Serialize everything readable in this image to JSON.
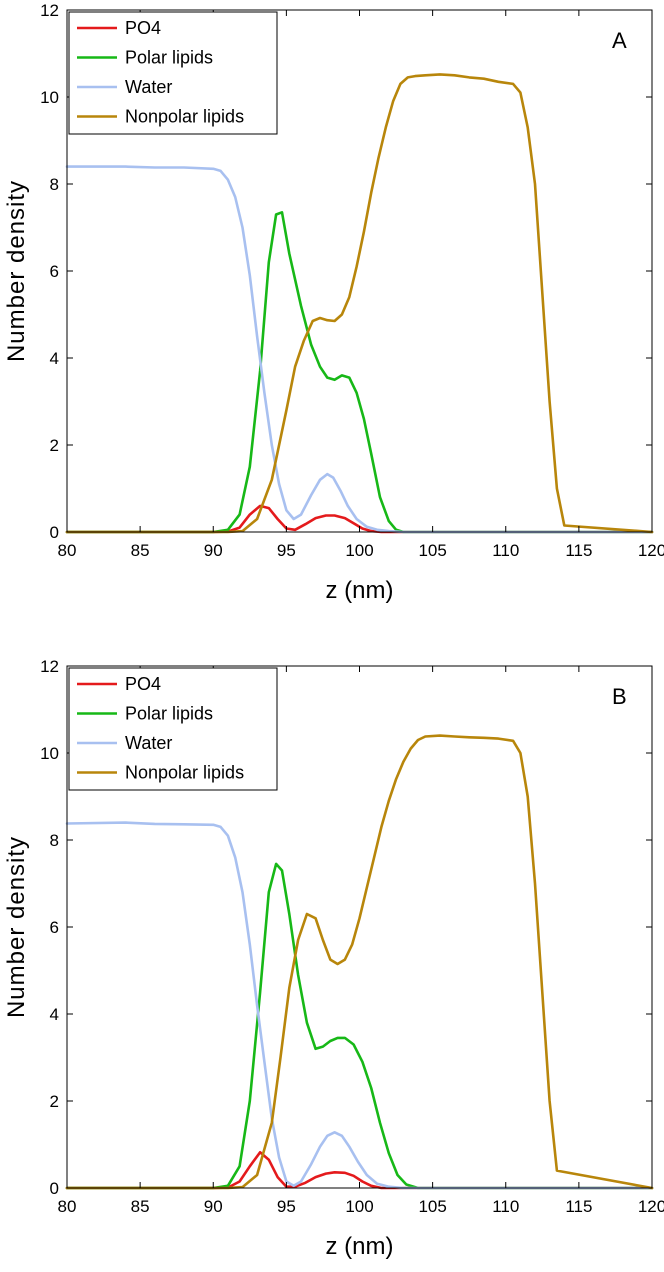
{
  "chart_data": [
    {
      "type": "line",
      "panel_label": "A",
      "xlabel": "z (nm)",
      "ylabel": "Number density",
      "xlim": [
        80,
        120
      ],
      "ylim": [
        0,
        12
      ],
      "xticks": [
        80,
        85,
        90,
        95,
        100,
        105,
        110,
        115,
        120
      ],
      "yticks": [
        0,
        2,
        4,
        6,
        8,
        10,
        12
      ],
      "grid": false,
      "legend_position": "top-left",
      "series": [
        {
          "name": "PO4",
          "color": "#e41a1c",
          "x": [
            80,
            90,
            91,
            91.8,
            92.5,
            93.2,
            93.8,
            94.4,
            95,
            95.6,
            96.3,
            97,
            97.7,
            98.3,
            99,
            99.6,
            100.2,
            100.8,
            101.5,
            102,
            120
          ],
          "y": [
            0,
            0,
            0.01,
            0.1,
            0.4,
            0.6,
            0.55,
            0.3,
            0.08,
            0.05,
            0.18,
            0.32,
            0.38,
            0.38,
            0.32,
            0.2,
            0.08,
            0.02,
            0,
            0,
            0
          ]
        },
        {
          "name": "Polar lipids",
          "color": "#17b817",
          "x": [
            80,
            90,
            91,
            91.8,
            92.5,
            93.2,
            93.8,
            94.3,
            94.7,
            95.2,
            96,
            96.7,
            97.3,
            97.8,
            98.3,
            98.8,
            99.3,
            99.8,
            100.3,
            100.8,
            101.4,
            102,
            102.5,
            103,
            120
          ],
          "y": [
            0,
            0,
            0.05,
            0.4,
            1.5,
            3.7,
            6.2,
            7.3,
            7.35,
            6.4,
            5.2,
            4.3,
            3.8,
            3.55,
            3.5,
            3.6,
            3.55,
            3.2,
            2.6,
            1.8,
            0.8,
            0.25,
            0.05,
            0,
            0
          ]
        },
        {
          "name": "Water",
          "color": "#a8c0f0",
          "x": [
            80,
            84,
            86,
            88,
            90,
            90.5,
            91,
            91.5,
            92,
            92.5,
            93,
            93.5,
            94,
            94.5,
            95,
            95.5,
            96,
            96.7,
            97.3,
            97.8,
            98.2,
            98.7,
            99.2,
            99.8,
            100.5,
            101.2,
            102,
            103,
            120
          ],
          "y": [
            8.4,
            8.4,
            8.38,
            8.38,
            8.35,
            8.3,
            8.1,
            7.7,
            7.0,
            5.9,
            4.5,
            3.2,
            2.0,
            1.1,
            0.5,
            0.3,
            0.4,
            0.85,
            1.2,
            1.33,
            1.25,
            0.95,
            0.6,
            0.3,
            0.12,
            0.05,
            0.02,
            0,
            0
          ]
        },
        {
          "name": "Nonpolar lipids",
          "color": "#b8860b",
          "x": [
            80,
            91,
            92,
            93,
            94,
            95,
            95.6,
            96.2,
            96.8,
            97.3,
            97.8,
            98.3,
            98.8,
            99.3,
            99.8,
            100.3,
            100.8,
            101.3,
            101.8,
            102.3,
            102.8,
            103.3,
            103.8,
            104.5,
            105.5,
            106.5,
            107.5,
            108.5,
            109.5,
            110.5,
            111,
            111.5,
            112,
            112.5,
            113,
            113.5,
            114,
            120
          ],
          "y": [
            0,
            0,
            0.02,
            0.3,
            1.2,
            2.8,
            3.8,
            4.4,
            4.85,
            4.92,
            4.87,
            4.85,
            5.0,
            5.4,
            6.1,
            6.9,
            7.8,
            8.6,
            9.3,
            9.9,
            10.3,
            10.45,
            10.48,
            10.5,
            10.52,
            10.5,
            10.45,
            10.42,
            10.35,
            10.3,
            10.1,
            9.3,
            8.0,
            5.5,
            3.0,
            1.0,
            0.15,
            0
          ]
        }
      ]
    },
    {
      "type": "line",
      "panel_label": "B",
      "xlabel": "z (nm)",
      "ylabel": "Number density",
      "xlim": [
        80,
        120
      ],
      "ylim": [
        0,
        12
      ],
      "xticks": [
        80,
        85,
        90,
        95,
        100,
        105,
        110,
        115,
        120
      ],
      "yticks": [
        0,
        2,
        4,
        6,
        8,
        10,
        12
      ],
      "grid": false,
      "legend_position": "top-left",
      "series": [
        {
          "name": "PO4",
          "color": "#e41a1c",
          "x": [
            80,
            90,
            91,
            91.8,
            92.5,
            93.2,
            93.8,
            94.4,
            95,
            95.6,
            96.3,
            97,
            97.7,
            98.3,
            99,
            99.6,
            100.2,
            100.8,
            101.5,
            102,
            120
          ],
          "y": [
            0,
            0,
            0.01,
            0.15,
            0.5,
            0.82,
            0.65,
            0.25,
            0.03,
            0.03,
            0.12,
            0.25,
            0.33,
            0.36,
            0.35,
            0.28,
            0.15,
            0.05,
            0,
            0,
            0
          ]
        },
        {
          "name": "Polar lipids",
          "color": "#17b817",
          "x": [
            80,
            90,
            91,
            91.8,
            92.5,
            93.2,
            93.8,
            94.3,
            94.7,
            95.2,
            95.8,
            96.4,
            97,
            97.5,
            98,
            98.5,
            99,
            99.6,
            100.2,
            100.8,
            101.4,
            102,
            102.6,
            103.2,
            104,
            120
          ],
          "y": [
            0,
            0,
            0.05,
            0.5,
            2.0,
            4.5,
            6.8,
            7.45,
            7.3,
            6.3,
            4.9,
            3.8,
            3.2,
            3.25,
            3.38,
            3.45,
            3.45,
            3.3,
            2.9,
            2.3,
            1.5,
            0.8,
            0.3,
            0.08,
            0,
            0
          ]
        },
        {
          "name": "Water",
          "color": "#a8c0f0",
          "x": [
            80,
            84,
            86,
            88,
            90,
            90.5,
            91,
            91.5,
            92,
            92.5,
            93,
            93.5,
            94,
            94.5,
            95,
            95.5,
            96,
            96.7,
            97.3,
            97.8,
            98.3,
            98.8,
            99.3,
            99.9,
            100.5,
            101.2,
            102,
            103,
            120
          ],
          "y": [
            8.38,
            8.4,
            8.37,
            8.36,
            8.35,
            8.3,
            8.1,
            7.6,
            6.8,
            5.6,
            4.2,
            2.9,
            1.6,
            0.7,
            0.15,
            0.05,
            0.15,
            0.55,
            0.95,
            1.2,
            1.28,
            1.2,
            0.95,
            0.6,
            0.3,
            0.1,
            0.03,
            0,
            0
          ]
        },
        {
          "name": "Nonpolar lipids",
          "color": "#b8860b",
          "x": [
            80,
            91,
            92,
            93,
            94,
            94.6,
            95.2,
            95.8,
            96.4,
            97,
            97.5,
            98,
            98.5,
            99,
            99.5,
            100,
            100.5,
            101,
            101.5,
            102,
            102.5,
            103,
            103.5,
            104,
            104.5,
            105.5,
            106.5,
            107.5,
            108.5,
            109.5,
            110.5,
            111,
            111.5,
            112,
            112.5,
            113,
            113.5,
            120
          ],
          "y": [
            0,
            0,
            0.02,
            0.3,
            1.5,
            3.0,
            4.6,
            5.7,
            6.3,
            6.2,
            5.7,
            5.25,
            5.15,
            5.25,
            5.6,
            6.2,
            6.9,
            7.6,
            8.3,
            8.9,
            9.4,
            9.8,
            10.1,
            10.3,
            10.38,
            10.4,
            10.38,
            10.36,
            10.35,
            10.33,
            10.28,
            10.0,
            9.0,
            7.0,
            4.5,
            2.0,
            0.4,
            0
          ]
        }
      ]
    }
  ]
}
